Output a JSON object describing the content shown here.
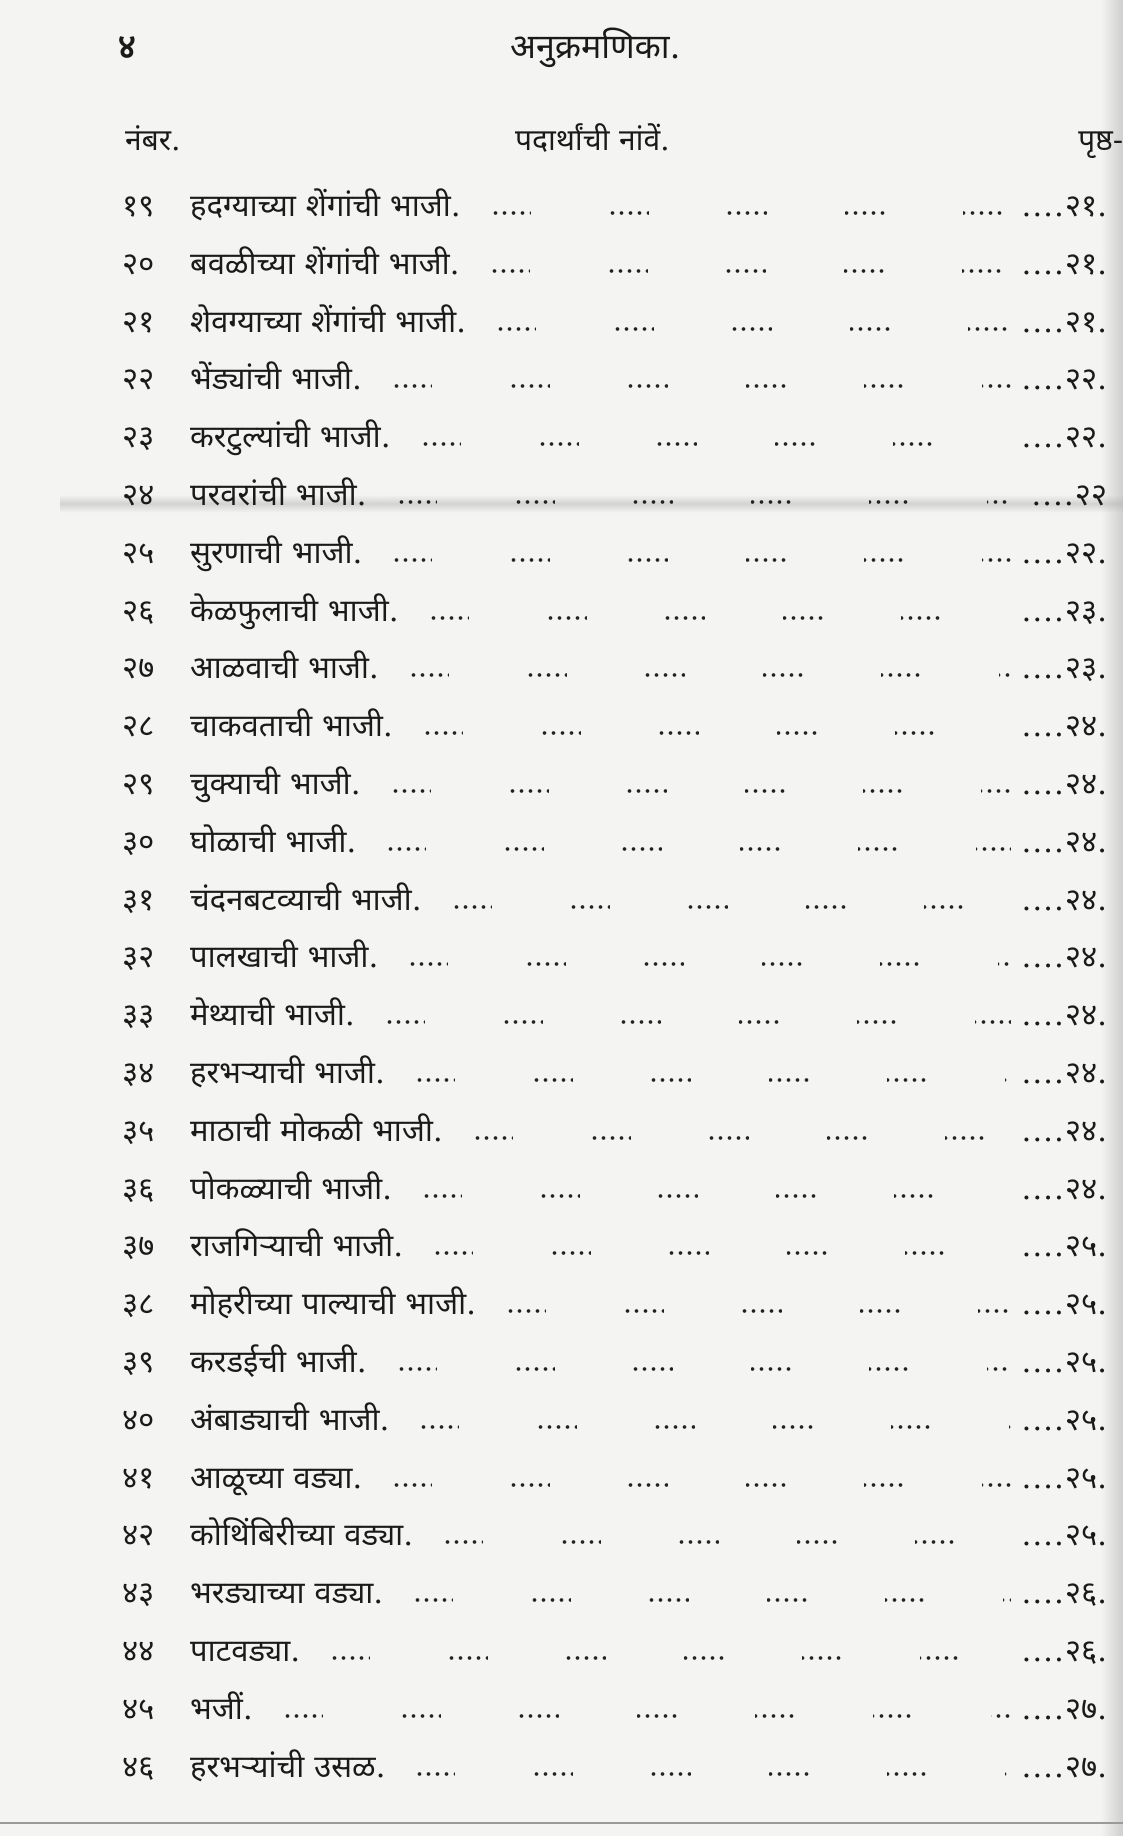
{
  "page_number": "४",
  "title": "अनुक्रमणिका.",
  "headers": {
    "number": "नंबर.",
    "name": "पदार्थांची नांवें.",
    "page": "पृष्ठ-"
  },
  "entries": [
    {
      "no": "१९",
      "name": "हदग्याच्या शेंगांची भाजी.",
      "page": "२१."
    },
    {
      "no": "२०",
      "name": "बवळीच्या शेंगांची भाजी.",
      "page": "२१."
    },
    {
      "no": "२१",
      "name": "शेवग्याच्या शेंगांची भाजी.",
      "page": "२१."
    },
    {
      "no": "२२",
      "name": "भेंड्यांची भाजी.",
      "page": "२२."
    },
    {
      "no": "२३",
      "name": "करटुल्यांची भाजी.",
      "page": "२२."
    },
    {
      "no": "२४",
      "name": "परवरांची भाजी.",
      "page": "२२"
    },
    {
      "no": "२५",
      "name": "सुरणाची भाजी.",
      "page": "२२."
    },
    {
      "no": "२६",
      "name": "केळफुलाची भाजी.",
      "page": "२३."
    },
    {
      "no": "२७",
      "name": "आळवाची भाजी.",
      "page": "२३."
    },
    {
      "no": "२८",
      "name": "चाकवताची भाजी.",
      "page": "२४."
    },
    {
      "no": "२९",
      "name": "चुक्याची भाजी.",
      "page": "२४."
    },
    {
      "no": "३०",
      "name": "घोळाची भाजी.",
      "page": "२४."
    },
    {
      "no": "३१",
      "name": "चंदनबटव्याची भाजी.",
      "page": "२४."
    },
    {
      "no": "३२",
      "name": "पालखाची भाजी.",
      "page": "२४."
    },
    {
      "no": "३३",
      "name": "मेथ्याची भाजी.",
      "page": "२४."
    },
    {
      "no": "३४",
      "name": "हरभऱ्याची भाजी.",
      "page": "२४."
    },
    {
      "no": "३५",
      "name": "माठाची मोकळी भाजी.",
      "page": "२४."
    },
    {
      "no": "३६",
      "name": "पोकळ्याची भाजी.",
      "page": "२४."
    },
    {
      "no": "३७",
      "name": "राजगिऱ्याची भाजी.",
      "page": "२५."
    },
    {
      "no": "३८",
      "name": "मोहरीच्या पाल्याची भाजी.",
      "page": "२५."
    },
    {
      "no": "३९",
      "name": "करडईची भाजी.",
      "page": "२५."
    },
    {
      "no": "४०",
      "name": "अंबाड्याची भाजी.",
      "page": "२५."
    },
    {
      "no": "४१",
      "name": "आळूच्या वड्या.",
      "page": "२५."
    },
    {
      "no": "४२",
      "name": "कोथिंबिरीच्या वड्या.",
      "page": "२५."
    },
    {
      "no": "४३",
      "name": "भरड्याच्या वड्या.",
      "page": "२६."
    },
    {
      "no": "४४",
      "name": "पाटवड्या.",
      "page": "२६."
    },
    {
      "no": "४५",
      "name": "भजीं.",
      "page": "२७."
    },
    {
      "no": "४६",
      "name": "हरभऱ्यांची उसळ.",
      "page": "२७."
    }
  ]
}
